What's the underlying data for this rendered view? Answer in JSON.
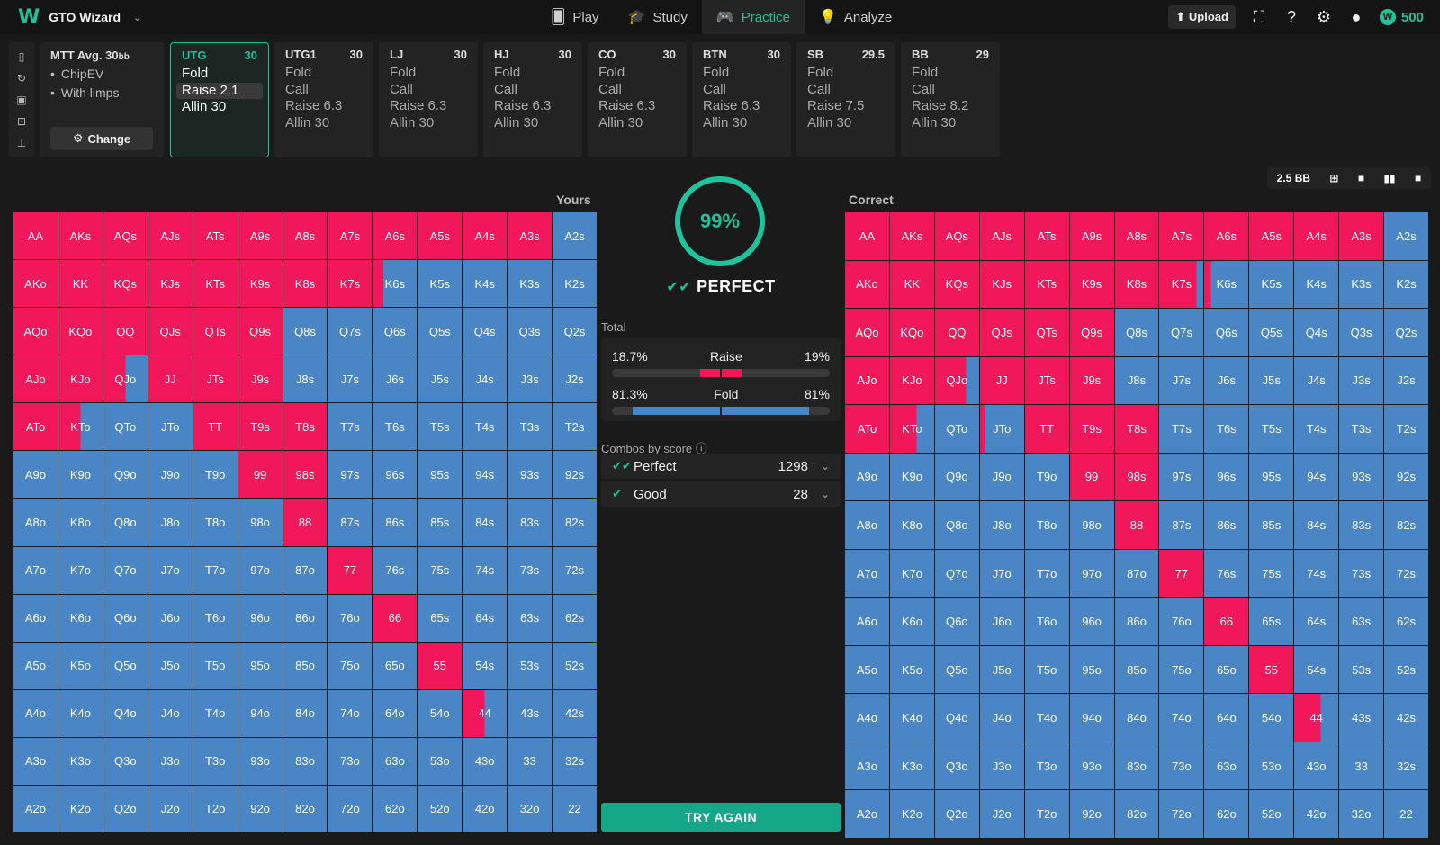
{
  "app": {
    "title": "GTO Wizard",
    "coins": "500"
  },
  "nav": [
    {
      "label": "Play",
      "icon": "poker-chip-icon",
      "glyph": "🂠",
      "active": false
    },
    {
      "label": "Study",
      "icon": "graduation-cap-icon",
      "glyph": "🎓",
      "active": false
    },
    {
      "label": "Practice",
      "icon": "gamepad-icon",
      "glyph": "🎮",
      "active": true
    },
    {
      "label": "Analyze",
      "icon": "lightbulb-icon",
      "glyph": "💡",
      "active": false
    }
  ],
  "toolbar": {
    "upload_label": "Upload"
  },
  "setup": {
    "title": "MTT Avg. 30",
    "title_sub": "bb",
    "options": [
      "ChipEV",
      "With limps"
    ],
    "change_label": "Change"
  },
  "positions": [
    {
      "name": "UTG",
      "stack": "30",
      "actions": [
        "Fold",
        "Raise 2.1",
        "Allin 30"
      ],
      "active": true,
      "selected": 1
    },
    {
      "name": "UTG1",
      "stack": "30",
      "actions": [
        "Fold",
        "Call",
        "Raise 6.3",
        "Allin 30"
      ]
    },
    {
      "name": "LJ",
      "stack": "30",
      "actions": [
        "Fold",
        "Call",
        "Raise 6.3",
        "Allin 30"
      ]
    },
    {
      "name": "HJ",
      "stack": "30",
      "actions": [
        "Fold",
        "Call",
        "Raise 6.3",
        "Allin 30"
      ]
    },
    {
      "name": "CO",
      "stack": "30",
      "actions": [
        "Fold",
        "Call",
        "Raise 6.3",
        "Allin 30"
      ]
    },
    {
      "name": "BTN",
      "stack": "30",
      "actions": [
        "Fold",
        "Call",
        "Raise 6.3",
        "Allin 30"
      ]
    },
    {
      "name": "SB",
      "stack": "29.5",
      "actions": [
        "Fold",
        "Call",
        "Raise 7.5",
        "Allin 30"
      ]
    },
    {
      "name": "BB",
      "stack": "29",
      "actions": [
        "Fold",
        "Call",
        "Raise 8.2",
        "Allin 30"
      ]
    }
  ],
  "view": {
    "bb_label": "2.5 BB"
  },
  "labels": {
    "yours": "Yours",
    "correct": "Correct"
  },
  "score": {
    "value": "99%",
    "verdict": "PERFECT"
  },
  "total": {
    "label": "Total",
    "raise": {
      "yours": "18.7%",
      "label": "Raise",
      "correct": "19%",
      "yours_frac": 0.187,
      "correct_frac": 0.19
    },
    "fold": {
      "yours": "81.3%",
      "label": "Fold",
      "correct": "81%",
      "yours_frac": 0.813,
      "correct_frac": 0.81
    }
  },
  "combos": {
    "label": "Combos by score",
    "rows": [
      {
        "name": "Perfect",
        "count": "1298"
      },
      {
        "name": "Good",
        "count": "28"
      }
    ]
  },
  "try_again_label": "TRY AGAIN",
  "colors": {
    "raise": "#f0185a",
    "fold": "#4a86c6",
    "accent": "#1fc29a"
  },
  "hands": [
    [
      "AA",
      "AKs",
      "AQs",
      "AJs",
      "ATs",
      "A9s",
      "A8s",
      "A7s",
      "A6s",
      "A5s",
      "A4s",
      "A3s",
      "A2s"
    ],
    [
      "AKo",
      "KK",
      "KQs",
      "KJs",
      "KTs",
      "K9s",
      "K8s",
      "K7s",
      "K6s",
      "K5s",
      "K4s",
      "K3s",
      "K2s"
    ],
    [
      "AQo",
      "KQo",
      "QQ",
      "QJs",
      "QTs",
      "Q9s",
      "Q8s",
      "Q7s",
      "Q6s",
      "Q5s",
      "Q4s",
      "Q3s",
      "Q2s"
    ],
    [
      "AJo",
      "KJo",
      "QJo",
      "JJ",
      "JTs",
      "J9s",
      "J8s",
      "J7s",
      "J6s",
      "J5s",
      "J4s",
      "J3s",
      "J2s"
    ],
    [
      "ATo",
      "KTo",
      "QTo",
      "JTo",
      "TT",
      "T9s",
      "T8s",
      "T7s",
      "T6s",
      "T5s",
      "T4s",
      "T3s",
      "T2s"
    ],
    [
      "A9o",
      "K9o",
      "Q9o",
      "J9o",
      "T9o",
      "99",
      "98s",
      "97s",
      "96s",
      "95s",
      "94s",
      "93s",
      "92s"
    ],
    [
      "A8o",
      "K8o",
      "Q8o",
      "J8o",
      "T8o",
      "98o",
      "88",
      "87s",
      "86s",
      "85s",
      "84s",
      "83s",
      "82s"
    ],
    [
      "A7o",
      "K7o",
      "Q7o",
      "J7o",
      "T7o",
      "97o",
      "87o",
      "77",
      "76s",
      "75s",
      "74s",
      "73s",
      "72s"
    ],
    [
      "A6o",
      "K6o",
      "Q6o",
      "J6o",
      "T6o",
      "96o",
      "86o",
      "76o",
      "66",
      "65s",
      "64s",
      "63s",
      "62s"
    ],
    [
      "A5o",
      "K5o",
      "Q5o",
      "J5o",
      "T5o",
      "95o",
      "85o",
      "75o",
      "65o",
      "55",
      "54s",
      "53s",
      "52s"
    ],
    [
      "A4o",
      "K4o",
      "Q4o",
      "J4o",
      "T4o",
      "94o",
      "84o",
      "74o",
      "64o",
      "54o",
      "44",
      "43s",
      "42s"
    ],
    [
      "A3o",
      "K3o",
      "Q3o",
      "J3o",
      "T3o",
      "93o",
      "83o",
      "73o",
      "63o",
      "53o",
      "43o",
      "33",
      "32s"
    ],
    [
      "A2o",
      "K2o",
      "Q2o",
      "J2o",
      "T2o",
      "92o",
      "82o",
      "72o",
      "62o",
      "52o",
      "42o",
      "32o",
      "22"
    ]
  ],
  "yours_raise": {
    "AA": 1,
    "AKs": 1,
    "AQs": 1,
    "AJs": 1,
    "ATs": 1,
    "A9s": 1,
    "A8s": 1,
    "A7s": 1,
    "A6s": 1,
    "A5s": 1,
    "A4s": 1,
    "A3s": 1,
    "AKo": 1,
    "KK": 1,
    "KQs": 1,
    "KJs": 1,
    "KTs": 1,
    "K9s": 1,
    "K8s": 1,
    "K7s": 1,
    "K6s": 0.25,
    "AQo": 1,
    "KQo": 1,
    "QQ": 1,
    "QJs": 1,
    "QTs": 1,
    "Q9s": 1,
    "AJo": 1,
    "KJo": 1,
    "QJo": 0.5,
    "JJ": 1,
    "JTs": 1,
    "J9s": 1,
    "ATo": 1,
    "KTo": 0.5,
    "TT": 1,
    "T9s": 1,
    "T8s": 1,
    "99": 1,
    "98s": 1,
    "88": 1,
    "77": 1,
    "66": 1,
    "55": 1,
    "44": 0.5
  },
  "correct_raise": {
    "AA": 1,
    "AKs": 1,
    "AQs": 1,
    "AJs": 1,
    "ATs": 1,
    "A9s": 1,
    "A8s": 1,
    "A7s": 1,
    "A6s": 1,
    "A5s": 1,
    "A4s": 1,
    "A3s": 1,
    "AKo": 1,
    "KK": 1,
    "KQs": 1,
    "KJs": 1,
    "KTs": 1,
    "K9s": 1,
    "K8s": 1,
    "K7s": 0.85,
    "K6s": 0.15,
    "AQo": 1,
    "KQo": 1,
    "QQ": 1,
    "QJs": 1,
    "QTs": 1,
    "Q9s": 1,
    "AJo": 1,
    "KJo": 1,
    "QJo": 0.7,
    "JJ": 1,
    "JTs": 1,
    "J9s": 1,
    "ATo": 1,
    "KTo": 0.6,
    "JTo": 0.1,
    "TT": 1,
    "T9s": 1,
    "T8s": 1,
    "99": 1,
    "98s": 1,
    "88": 1,
    "77": 1,
    "66": 1,
    "55": 1,
    "44": 0.6
  }
}
